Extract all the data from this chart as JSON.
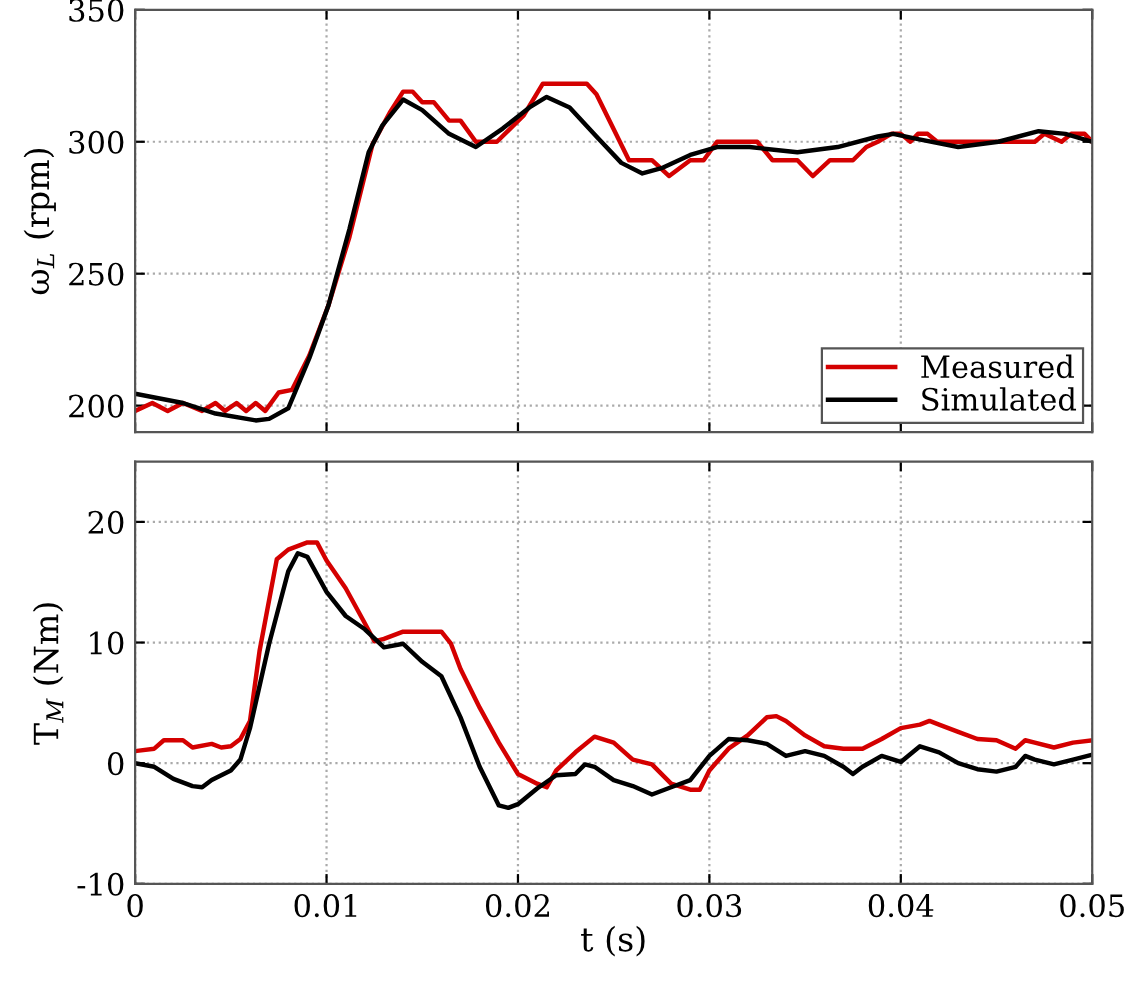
{
  "chart_data": [
    {
      "type": "line",
      "ylabel": "ω$_{L}$ (rpm)",
      "xlim": [
        0,
        0.05
      ],
      "xticks": [
        0,
        0.01,
        0.02,
        0.03,
        0.04,
        0.05
      ],
      "ylim": [
        190,
        350
      ],
      "yticks": [
        200,
        250,
        300,
        350
      ],
      "grid": true,
      "legend": "bottom right",
      "tick_labels": "y",
      "line_style": "solid",
      "marker": "none",
      "series": [
        {
          "name": "Measured",
          "color": "#d40000",
          "x": [
            0,
            0.0009,
            0.0017,
            0.0025,
            0.0035,
            0.0042,
            0.0047,
            0.0053,
            0.0058,
            0.0063,
            0.0068,
            0.0075,
            0.0082,
            0.0091,
            0.0101,
            0.0112,
            0.0124,
            0.0133,
            0.014,
            0.0145,
            0.015,
            0.0156,
            0.0164,
            0.017,
            0.0178,
            0.0189,
            0.0203,
            0.0213,
            0.0236,
            0.0241,
            0.0258,
            0.027,
            0.0279,
            0.029,
            0.0297,
            0.0304,
            0.0325,
            0.0333,
            0.0346,
            0.0354,
            0.0363,
            0.0375,
            0.0382,
            0.0388,
            0.0395,
            0.04,
            0.0405,
            0.0409,
            0.0414,
            0.0419,
            0.047,
            0.0475,
            0.0484,
            0.0489,
            0.0496,
            0.05
          ],
          "values": [
            198,
            201,
            198,
            201,
            198,
            201,
            198,
            201,
            198,
            201,
            198,
            205,
            206,
            219,
            238,
            264,
            299,
            311,
            319,
            319,
            315,
            315,
            308,
            308,
            300,
            300,
            310,
            322,
            322,
            318,
            293,
            293,
            287,
            293,
            293,
            300,
            300,
            293,
            293,
            287,
            293,
            293,
            298,
            300,
            303,
            303,
            300,
            303,
            303,
            300,
            300,
            303,
            300,
            303,
            303,
            300
          ]
        },
        {
          "name": "Simulated",
          "color": "#000000",
          "x": [
            0,
            0.0025,
            0.0042,
            0.0063,
            0.007,
            0.008,
            0.0091,
            0.0101,
            0.0112,
            0.0122,
            0.0129,
            0.014,
            0.015,
            0.0164,
            0.0178,
            0.0192,
            0.0206,
            0.0215,
            0.0227,
            0.0241,
            0.0254,
            0.0265,
            0.0275,
            0.029,
            0.0304,
            0.0321,
            0.0346,
            0.0367,
            0.0388,
            0.0396,
            0.0409,
            0.043,
            0.0451,
            0.0472,
            0.0486,
            0.05
          ],
          "values": [
            204.5,
            201,
            197,
            194.4,
            195,
            199,
            218,
            238,
            267,
            296,
            306,
            316,
            312,
            303,
            298,
            305,
            313,
            317,
            313,
            302,
            292,
            288,
            290,
            295,
            298,
            298,
            296,
            298,
            302,
            303,
            301,
            298,
            300,
            304,
            303,
            300
          ]
        }
      ]
    },
    {
      "type": "line",
      "xlabel": "t (s)",
      "ylabel": "T$_{M}$ (Nm)",
      "xlim": [
        0,
        0.05
      ],
      "xticks": [
        0,
        0.01,
        0.02,
        0.03,
        0.04,
        0.05
      ],
      "ylim": [
        -10,
        25
      ],
      "yticks": [
        -10,
        0,
        10,
        20
      ],
      "grid": true,
      "line_style": "solid",
      "marker": "none",
      "series": [
        {
          "color": "#d40000",
          "x": [
            0,
            0.001,
            0.0015,
            0.0025,
            0.003,
            0.004,
            0.0045,
            0.005,
            0.0055,
            0.006,
            0.0065,
            0.0074,
            0.008,
            0.009,
            0.0095,
            0.01,
            0.011,
            0.012,
            0.0125,
            0.013,
            0.014,
            0.015,
            0.016,
            0.0165,
            0.017,
            0.018,
            0.019,
            0.02,
            0.021,
            0.0215,
            0.022,
            0.023,
            0.024,
            0.025,
            0.026,
            0.027,
            0.028,
            0.029,
            0.0295,
            0.03,
            0.031,
            0.032,
            0.033,
            0.0335,
            0.034,
            0.035,
            0.036,
            0.037,
            0.038,
            0.039,
            0.04,
            0.041,
            0.0415,
            0.042,
            0.043,
            0.044,
            0.045,
            0.046,
            0.0465,
            0.047,
            0.048,
            0.049,
            0.05
          ],
          "values": [
            1.0,
            1.2,
            1.9,
            1.9,
            1.3,
            1.6,
            1.3,
            1.4,
            2.0,
            3.5,
            9.3,
            16.9,
            17.7,
            18.3,
            18.3,
            16.8,
            14.5,
            11.6,
            10.1,
            10.3,
            10.9,
            10.9,
            10.9,
            9.9,
            7.8,
            4.6,
            1.7,
            -0.9,
            -1.7,
            -2.0,
            -0.6,
            0.9,
            2.2,
            1.7,
            0.3,
            -0.1,
            -1.7,
            -2.2,
            -2.2,
            -0.6,
            1.2,
            2.3,
            3.8,
            3.9,
            3.5,
            2.3,
            1.4,
            1.2,
            1.2,
            2.0,
            2.9,
            3.2,
            3.5,
            3.2,
            2.6,
            2.0,
            1.9,
            1.2,
            1.9,
            1.7,
            1.3,
            1.7,
            1.9
          ]
        },
        {
          "color": "#000000",
          "x": [
            0,
            0.001,
            0.002,
            0.003,
            0.0035,
            0.004,
            0.005,
            0.0055,
            0.006,
            0.007,
            0.008,
            0.0085,
            0.009,
            0.01,
            0.011,
            0.012,
            0.013,
            0.014,
            0.015,
            0.016,
            0.017,
            0.018,
            0.019,
            0.0195,
            0.02,
            0.021,
            0.022,
            0.023,
            0.0235,
            0.024,
            0.025,
            0.026,
            0.027,
            0.028,
            0.029,
            0.03,
            0.031,
            0.032,
            0.033,
            0.034,
            0.035,
            0.036,
            0.037,
            0.0375,
            0.038,
            0.039,
            0.04,
            0.041,
            0.042,
            0.043,
            0.044,
            0.045,
            0.046,
            0.0465,
            0.047,
            0.048,
            0.049,
            0.05
          ],
          "values": [
            0,
            -0.3,
            -1.3,
            -1.9,
            -2.0,
            -1.4,
            -0.6,
            0.3,
            2.9,
            9.9,
            15.9,
            17.4,
            17.1,
            14.2,
            12.2,
            11.1,
            9.6,
            9.9,
            8.4,
            7.2,
            3.8,
            -0.3,
            -3.5,
            -3.7,
            -3.4,
            -2.1,
            -1.0,
            -0.9,
            -0.1,
            -0.3,
            -1.4,
            -1.9,
            -2.6,
            -2.0,
            -1.4,
            0.6,
            2.0,
            1.9,
            1.6,
            0.6,
            1.0,
            0.6,
            -0.3,
            -0.9,
            -0.3,
            0.6,
            0.1,
            1.4,
            0.9,
            0,
            -0.5,
            -0.7,
            -0.3,
            0.6,
            0.3,
            -0.1,
            0.3,
            0.7
          ]
        }
      ]
    }
  ]
}
